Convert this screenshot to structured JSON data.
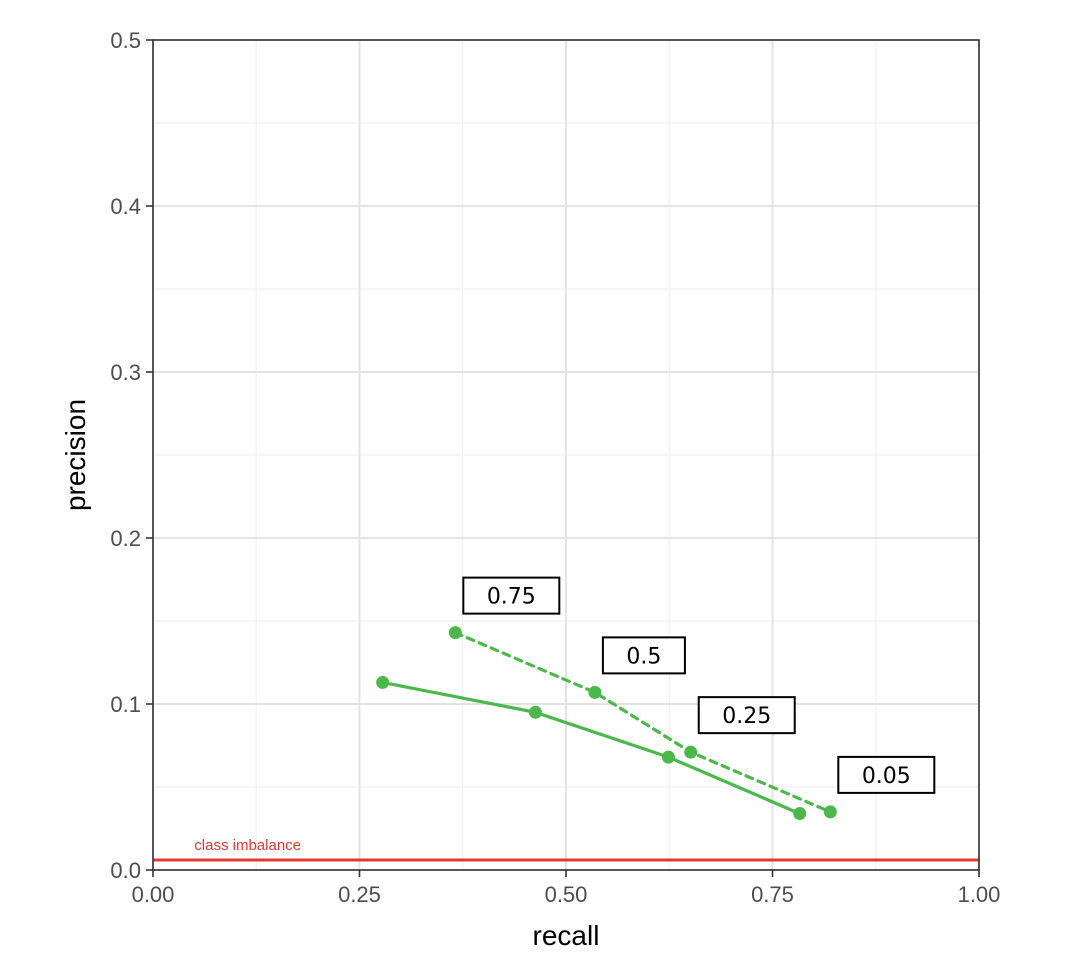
{
  "chart_data": {
    "type": "line",
    "title": "",
    "xlabel": "recall",
    "ylabel": "precision",
    "xlim": [
      0,
      1
    ],
    "ylim": [
      0,
      0.5
    ],
    "x_ticks": [
      0,
      0.25,
      0.5,
      0.75,
      1
    ],
    "x_tick_labels": [
      "0.00",
      "0.25",
      "0.50",
      "0.75",
      "1.00"
    ],
    "y_ticks": [
      0,
      0.1,
      0.2,
      0.3,
      0.4,
      0.5
    ],
    "y_tick_labels": [
      "0.0",
      "0.1",
      "0.2",
      "0.3",
      "0.4",
      "0.5"
    ],
    "grid": true,
    "legend": "none",
    "series": [
      {
        "line_style": "solid",
        "color": "#4cb84c",
        "points": [
          {
            "x": 0.278,
            "y": 0.113
          },
          {
            "x": 0.463,
            "y": 0.095
          },
          {
            "x": 0.624,
            "y": 0.068
          },
          {
            "x": 0.783,
            "y": 0.034
          }
        ]
      },
      {
        "line_style": "dashed",
        "color": "#4cb84c",
        "points": [
          {
            "x": 0.366,
            "y": 0.143
          },
          {
            "x": 0.535,
            "y": 0.107
          },
          {
            "x": 0.651,
            "y": 0.071
          },
          {
            "x": 0.82,
            "y": 0.035
          }
        ]
      }
    ],
    "threshold_labels": [
      {
        "text": "0.75",
        "point_series": 1,
        "point_index": 0
      },
      {
        "text": "0.5",
        "point_series": 1,
        "point_index": 1
      },
      {
        "text": "0.25",
        "point_series": 1,
        "point_index": 2
      },
      {
        "text": "0.05",
        "point_series": 1,
        "point_index": 3
      }
    ],
    "reference_line": {
      "label": "class imbalance",
      "y": 0.006,
      "color": "#e03a2f"
    }
  }
}
